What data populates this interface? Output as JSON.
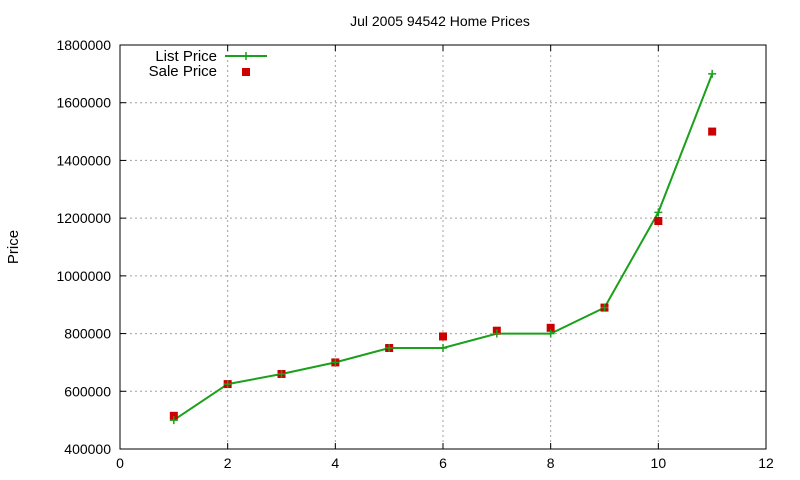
{
  "chart_data": {
    "type": "line",
    "title": "Jul 2005 94542 Home Prices",
    "xlabel": "",
    "ylabel": "Price",
    "xlim": [
      0,
      12
    ],
    "ylim": [
      400000,
      1800000
    ],
    "xticks": [
      0,
      2,
      4,
      6,
      8,
      10,
      12
    ],
    "yticks": [
      400000,
      600000,
      800000,
      1000000,
      1200000,
      1400000,
      1600000,
      1800000
    ],
    "grid": true,
    "legend_position": "top-left",
    "series": [
      {
        "name": "List Price",
        "style": "line-plus",
        "color": "#1aa01a",
        "x": [
          1,
          2,
          3,
          4,
          5,
          6,
          7,
          8,
          9,
          10,
          11
        ],
        "y": [
          500000,
          625000,
          660000,
          700000,
          750000,
          750000,
          800000,
          800000,
          890000,
          1220000,
          1700000
        ]
      },
      {
        "name": "Sale Price",
        "style": "square-markers",
        "color": "#cc0000",
        "x": [
          1,
          2,
          3,
          4,
          5,
          6,
          7,
          8,
          9,
          10,
          11
        ],
        "y": [
          515000,
          625000,
          660000,
          700000,
          750000,
          790000,
          810000,
          820000,
          890000,
          1190000,
          1500000
        ]
      }
    ]
  }
}
